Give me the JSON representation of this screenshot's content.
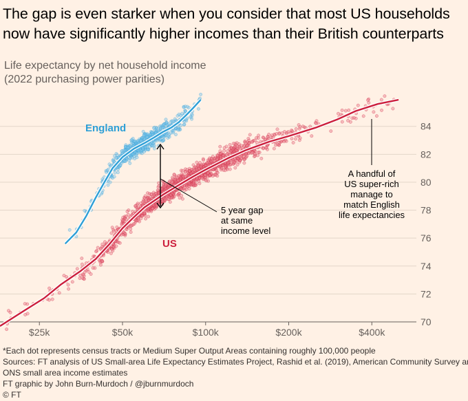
{
  "title": "The gap is even starker when you consider that most US households now have significantly higher incomes than their British counterparts",
  "subtitle_line1": "Life expectancy by net household income",
  "subtitle_line2": "(2022 purchasing power parities)",
  "colors": {
    "background": "#fff1e5",
    "england": "#2e9fd6",
    "us": "#cc1f3c",
    "annotation": "#33302e"
  },
  "chart_data": {
    "type": "scatter",
    "x_scale": "log",
    "xlim": [
      18000,
      580000
    ],
    "ylim": [
      70,
      86.3
    ],
    "x_ticks": [
      {
        "value": 25000,
        "label": "$25k"
      },
      {
        "value": 50000,
        "label": "$50k"
      },
      {
        "value": 100000,
        "label": "$100k"
      },
      {
        "value": 200000,
        "label": "$200k"
      },
      {
        "value": 400000,
        "label": "$400k"
      }
    ],
    "y_ticks": [
      70,
      72,
      74,
      76,
      78,
      80,
      82,
      84
    ],
    "grid": true,
    "series": [
      {
        "name": "England",
        "color": "#2e9fd6",
        "trend": [
          [
            31000,
            75.6
          ],
          [
            34000,
            76.4
          ],
          [
            37000,
            77.6
          ],
          [
            40000,
            78.9
          ],
          [
            43000,
            80.0
          ],
          [
            46000,
            81.0
          ],
          [
            50000,
            81.8
          ],
          [
            55000,
            82.4
          ],
          [
            60000,
            82.8
          ],
          [
            65000,
            83.2
          ],
          [
            70000,
            83.6
          ],
          [
            75000,
            83.9
          ],
          [
            80000,
            84.3
          ],
          [
            85000,
            84.8
          ],
          [
            90000,
            85.3
          ],
          [
            96000,
            85.9
          ]
        ],
        "spread": 0.9
      },
      {
        "name": "US",
        "color": "#cc1f3c",
        "trend": [
          [
            18000,
            69.7
          ],
          [
            22000,
            70.8
          ],
          [
            26000,
            71.7
          ],
          [
            30000,
            72.7
          ],
          [
            35000,
            73.6
          ],
          [
            40000,
            74.5
          ],
          [
            45000,
            75.6
          ],
          [
            50000,
            76.7
          ],
          [
            55000,
            77.5
          ],
          [
            60000,
            78.2
          ],
          [
            70000,
            79.1
          ],
          [
            80000,
            79.8
          ],
          [
            90000,
            80.4
          ],
          [
            100000,
            80.9
          ],
          [
            120000,
            81.7
          ],
          [
            140000,
            82.3
          ],
          [
            170000,
            82.9
          ],
          [
            200000,
            83.3
          ],
          [
            250000,
            83.9
          ],
          [
            300000,
            84.5
          ],
          [
            350000,
            85.1
          ],
          [
            420000,
            85.6
          ],
          [
            500000,
            85.9
          ]
        ],
        "spread": 1.0
      }
    ],
    "annotations": {
      "england_label": "England",
      "us_label": "US",
      "gap_line1": "5 year gap",
      "gap_line2": "at same",
      "gap_line3": "income level",
      "rich_line1": "A handful of",
      "rich_line2": "US super-rich",
      "rich_line3": "manage to",
      "rich_line4": "match English",
      "rich_line5": "life expectancies"
    }
  },
  "footer": {
    "line1": "*Each dot represents census tracts or Medium Super Output Areas containing roughly 100,000 people",
    "line2": "Sources: FT analysis of US Small-area Life Expectancy Estimates Project, Rashid et al. (2019), American Community Survey and",
    "line3": "ONS small area income estimates",
    "line4": "FT graphic by John Burn-Murdoch / @jburnmurdoch",
    "line5": "© FT"
  }
}
